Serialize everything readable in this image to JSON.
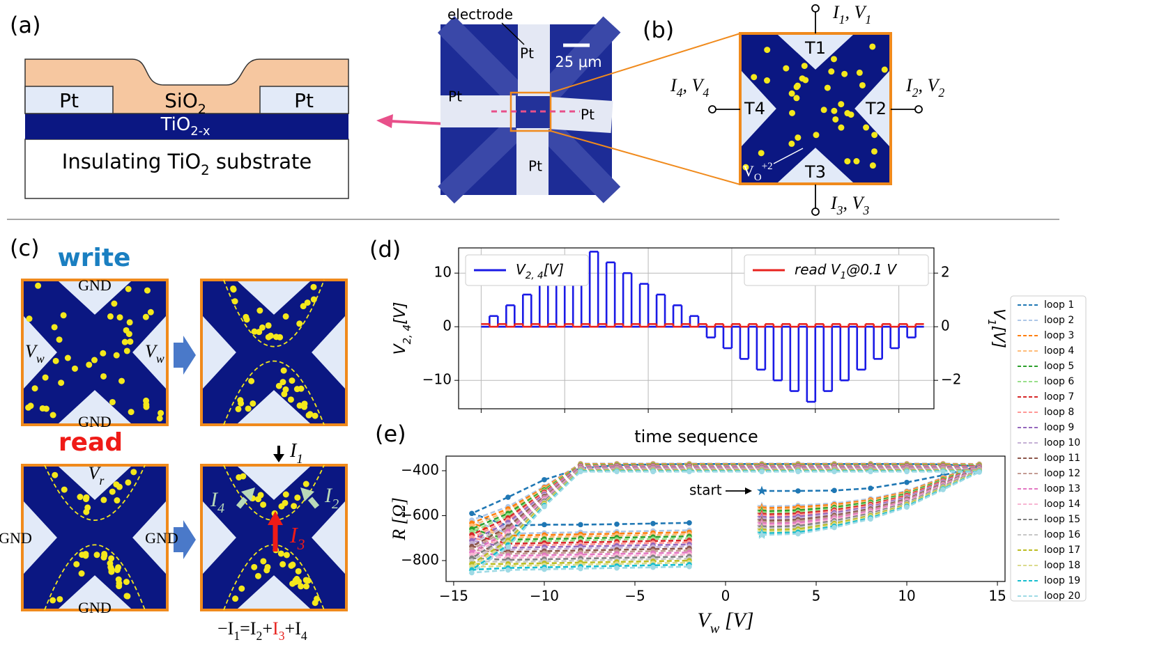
{
  "panel_a": {
    "label": "(a)",
    "pt_left": "Pt",
    "pt_right": "Pt",
    "sio2": [
      {
        "text": "SiO",
        "sub": "2"
      }
    ],
    "tio2x": [
      {
        "text": "TiO",
        "sub": "2-x"
      }
    ],
    "substrate": [
      {
        "text": "Insulating TiO",
        "sub": "2"
      },
      {
        "text": " substrate"
      }
    ]
  },
  "micrograph": {
    "electrode": "electrode",
    "pt_top": "Pt",
    "pt_left": "Pt",
    "pt_right": "Pt",
    "pt_bottom": "Pt",
    "scale": "25 μm"
  },
  "panel_b": {
    "label": "(b)",
    "terminals": [
      "T1",
      "T2",
      "T3",
      "T4"
    ],
    "t1": [
      {
        "text": "I",
        "sub": "1"
      },
      {
        "text": ", V",
        "sub": "1"
      }
    ],
    "t2": [
      {
        "text": "I",
        "sub": "2"
      },
      {
        "text": ", V",
        "sub": "2"
      }
    ],
    "t3": [
      {
        "text": "I",
        "sub": "3"
      },
      {
        "text": ", V",
        "sub": "3"
      }
    ],
    "t4": [
      {
        "text": "I",
        "sub": "4"
      },
      {
        "text": ", V",
        "sub": "4"
      }
    ],
    "vo": [
      {
        "text": "V",
        "sub": "O",
        "sup": "+2"
      }
    ]
  },
  "panel_c": {
    "label": "(c)",
    "write": "write",
    "read": "read",
    "gnd": [
      "GND",
      "GND",
      "GND",
      "GND",
      "GND"
    ],
    "vw_left": [
      {
        "text": "V",
        "sub": "w"
      }
    ],
    "vw_right": [
      {
        "text": "V",
        "sub": "w"
      }
    ],
    "vr": [
      {
        "text": "V",
        "sub": "r"
      }
    ],
    "i1": [
      {
        "text": "I",
        "sub": "1"
      }
    ],
    "i2": [
      {
        "text": "I",
        "sub": "2"
      }
    ],
    "i3": [
      {
        "text": "I",
        "sub": "3"
      }
    ],
    "i4": [
      {
        "text": "I",
        "sub": "4"
      }
    ],
    "equation": [
      {
        "text": "−I",
        "sub": "1"
      },
      {
        "text": "=I",
        "sub": "2"
      },
      {
        "text": "+"
      },
      {
        "text": "I",
        "sub": "3",
        "color": "#e8231f"
      },
      {
        "text": "+I",
        "sub": "4"
      }
    ]
  },
  "chart_data": [
    {
      "type": "step",
      "label": "(d)",
      "xlabel": "time sequence",
      "ylabel": [
        {
          "text": "V",
          "sub": "2, 4"
        },
        {
          "text": "[V]"
        }
      ],
      "y2label": [
        {
          "text": "V",
          "sub": "1"
        },
        {
          "text": "[V]"
        }
      ],
      "x": [
        0,
        1,
        2,
        3,
        4,
        5,
        6,
        7,
        8,
        9,
        10,
        11,
        12,
        13,
        14,
        15,
        16,
        17,
        18,
        19,
        20,
        21,
        22,
        23,
        24,
        25,
        26,
        27,
        28,
        29,
        30,
        31,
        32,
        33,
        34,
        35,
        36,
        37,
        38,
        39,
        40,
        41,
        42,
        43,
        44,
        45,
        46,
        47,
        48,
        49,
        50,
        51,
        52
      ],
      "xlim": [
        -2.7,
        54.2
      ],
      "xgrid": [
        0,
        10,
        20,
        30,
        40,
        50
      ],
      "ylim": [
        -15.3,
        14.7
      ],
      "yticks": [
        {
          "value": -10,
          "label": "−10"
        },
        0,
        10
      ],
      "y2lim": [
        -3.06,
        2.94
      ],
      "y2ticks": [
        {
          "value": -2,
          "label": "−2"
        },
        0,
        2
      ],
      "grid": true,
      "series": [
        {
          "name": [
            {
              "text": "V",
              "sub": "2, 4"
            },
            {
              "text": "[V]"
            }
          ],
          "color": "#1a1ae6",
          "legend": "upper left",
          "values": [
            0,
            2,
            0,
            4,
            0,
            6,
            0,
            8,
            0,
            10,
            0,
            12,
            0,
            14,
            0,
            12,
            0,
            10,
            0,
            8,
            0,
            6,
            0,
            4,
            0,
            2,
            0,
            -2,
            0,
            -4,
            0,
            -6,
            0,
            -8,
            0,
            -10,
            0,
            -12,
            0,
            -14,
            0,
            -12,
            0,
            -10,
            0,
            -8,
            0,
            -6,
            0,
            -4,
            0,
            -2,
            0
          ]
        },
        {
          "name": [
            {
              "text": "read "
            },
            {
              "text": "V",
              "sub": "1"
            },
            {
              "text": "@0.1 "
            },
            {
              "text": "V"
            }
          ],
          "color": "#e8231f",
          "axis": "y2",
          "legend": "upper right",
          "values": [
            0.1,
            0,
            0.1,
            0,
            0.1,
            0,
            0.1,
            0,
            0.1,
            0,
            0.1,
            0,
            0.1,
            0,
            0.1,
            0,
            0.1,
            0,
            0.1,
            0,
            0.1,
            0,
            0.1,
            0,
            0.1,
            0,
            0.1,
            0,
            0.1,
            0,
            0.1,
            0,
            0.1,
            0,
            0.1,
            0,
            0.1,
            0,
            0.1,
            0,
            0.1,
            0,
            0.1,
            0,
            0.1,
            0,
            0.1,
            0,
            0.1,
            0,
            0.1,
            0,
            0.1
          ]
        }
      ]
    },
    {
      "type": "line",
      "label": "(e)",
      "xlabel": [
        {
          "text": "V",
          "sub": "w"
        },
        {
          "text": " [V]"
        }
      ],
      "ylabel": [
        {
          "text": "R"
        },
        {
          "text": " [Ω]"
        }
      ],
      "annotation": "start",
      "x": [
        2,
        4,
        6,
        8,
        10,
        12,
        14,
        12,
        10,
        8,
        6,
        4,
        2,
        -2,
        -4,
        -6,
        -8,
        -10,
        -12,
        -14,
        -12,
        -10,
        -8,
        -6,
        -4,
        -2
      ],
      "xlim": [
        -15.42,
        15.42
      ],
      "xticks": [
        {
          "value": -15,
          "label": "−15"
        },
        {
          "value": -10,
          "label": "−10"
        },
        {
          "value": -5,
          "label": "−5"
        },
        0,
        5,
        10,
        15
      ],
      "ylim": [
        -893,
        -335
      ],
      "yticks": [
        {
          "value": -800,
          "label": "−800"
        },
        {
          "value": -600,
          "label": "−600"
        },
        {
          "value": -400,
          "label": "−400"
        }
      ],
      "legend": "right",
      "series": [
        {
          "name": "loop 1",
          "color": "#1f77b4",
          "values": [
            -490,
            -490,
            -488,
            -478,
            -452,
            -420,
            -380,
            -372,
            -370,
            -370,
            -370,
            -370,
            -370,
            -370,
            -372,
            -375,
            -390,
            -440,
            -518,
            -590,
            -645,
            -640,
            -640,
            -638,
            -635,
            -632
          ]
        },
        {
          "name": "loop 2",
          "color": "#aec7e8",
          "values": [
            -560,
            -555,
            -545,
            -525,
            -490,
            -430,
            -370,
            -368,
            -368,
            -368,
            -368,
            -368,
            -368,
            -368,
            -368,
            -368,
            -368,
            -470,
            -560,
            -620,
            -680,
            -677,
            -674,
            -671,
            -668,
            -665
          ]
        },
        {
          "name": "loop 3",
          "color": "#ff7f0e",
          "values": [
            -567,
            -562,
            -551,
            -530,
            -494,
            -433,
            -372,
            -370,
            -370,
            -370,
            -370,
            -370,
            -370,
            -370,
            -370,
            -370,
            -370,
            -475,
            -570,
            -633,
            -689,
            -686,
            -683,
            -680,
            -677,
            -674
          ]
        },
        {
          "name": "loop 4",
          "color": "#ffbb78",
          "values": [
            -574,
            -569,
            -557,
            -535,
            -498,
            -436,
            -374,
            -372,
            -372,
            -372,
            -372,
            -372,
            -372,
            -372,
            -372,
            -372,
            -372,
            -480,
            -580,
            -646,
            -698,
            -695,
            -692,
            -689,
            -686,
            -683
          ]
        },
        {
          "name": "loop 5",
          "color": "#2ca02c",
          "values": [
            -581,
            -576,
            -563,
            -540,
            -502,
            -439,
            -376,
            -374,
            -374,
            -374,
            -374,
            -374,
            -374,
            -374,
            -374,
            -374,
            -374,
            -485,
            -590,
            -659,
            -707,
            -704,
            -701,
            -698,
            -695,
            -692
          ]
        },
        {
          "name": "loop 6",
          "color": "#98df8a",
          "values": [
            -588,
            -583,
            -569,
            -545,
            -506,
            -442,
            -378,
            -376,
            -376,
            -376,
            -376,
            -376,
            -376,
            -376,
            -376,
            -376,
            -376,
            -490,
            -600,
            -672,
            -716,
            -713,
            -710,
            -707,
            -704,
            -701
          ]
        },
        {
          "name": "loop 7",
          "color": "#d62728",
          "values": [
            -595,
            -590,
            -575,
            -550,
            -510,
            -445,
            -380,
            -378,
            -378,
            -378,
            -378,
            -378,
            -378,
            -378,
            -378,
            -378,
            -378,
            -495,
            -610,
            -685,
            -725,
            -722,
            -719,
            -716,
            -713,
            -710
          ]
        },
        {
          "name": "loop 8",
          "color": "#ff9896",
          "values": [
            -602,
            -597,
            -581,
            -555,
            -514,
            -448,
            -382,
            -380,
            -380,
            -380,
            -380,
            -380,
            -380,
            -380,
            -380,
            -380,
            -380,
            -500,
            -620,
            -698,
            -734,
            -731,
            -728,
            -725,
            -722,
            -719
          ]
        },
        {
          "name": "loop 9",
          "color": "#9467bd",
          "values": [
            -609,
            -604,
            -587,
            -560,
            -518,
            -451,
            -384,
            -382,
            -382,
            -382,
            -382,
            -382,
            -382,
            -382,
            -382,
            -382,
            -382,
            -505,
            -630,
            -711,
            -743,
            -740,
            -737,
            -734,
            -731,
            -728
          ]
        },
        {
          "name": "loop 10",
          "color": "#c5b0d5",
          "values": [
            -616,
            -611,
            -593,
            -565,
            -522,
            -454,
            -386,
            -384,
            -384,
            -384,
            -384,
            -384,
            -384,
            -384,
            -384,
            -384,
            -384,
            -510,
            -640,
            -724,
            -752,
            -749,
            -746,
            -743,
            -740,
            -737
          ]
        },
        {
          "name": "loop 11",
          "color": "#8c564b",
          "values": [
            -623,
            -618,
            -599,
            -570,
            -526,
            -457,
            -388,
            -386,
            -386,
            -386,
            -386,
            -386,
            -386,
            -386,
            -386,
            -386,
            -386,
            -515,
            -650,
            -737,
            -761,
            -758,
            -755,
            -752,
            -749,
            -746
          ]
        },
        {
          "name": "loop 12",
          "color": "#c49c94",
          "values": [
            -630,
            -625,
            -605,
            -575,
            -530,
            -460,
            -390,
            -388,
            -388,
            -388,
            -388,
            -388,
            -388,
            -388,
            -388,
            -388,
            -388,
            -520,
            -660,
            -750,
            -770,
            -767,
            -764,
            -761,
            -758,
            -755
          ]
        },
        {
          "name": "loop 13",
          "color": "#e377c2",
          "values": [
            -637,
            -632,
            -611,
            -580,
            -534,
            -463,
            -392,
            -390,
            -390,
            -390,
            -390,
            -390,
            -390,
            -390,
            -390,
            -390,
            -390,
            -525,
            -670,
            -763,
            -779,
            -776,
            -773,
            -770,
            -767,
            -764
          ]
        },
        {
          "name": "loop 14",
          "color": "#f7b6d2",
          "values": [
            -644,
            -639,
            -617,
            -585,
            -538,
            -466,
            -394,
            -392,
            -392,
            -392,
            -392,
            -392,
            -392,
            -392,
            -392,
            -392,
            -392,
            -530,
            -680,
            -776,
            -788,
            -785,
            -782,
            -779,
            -776,
            -773
          ]
        },
        {
          "name": "loop 15",
          "color": "#7f7f7f",
          "values": [
            -651,
            -646,
            -623,
            -590,
            -542,
            -469,
            -396,
            -394,
            -394,
            -394,
            -394,
            -394,
            -394,
            -394,
            -394,
            -394,
            -394,
            -535,
            -690,
            -789,
            -797,
            -794,
            -791,
            -788,
            -785,
            -782
          ]
        },
        {
          "name": "loop 16",
          "color": "#c7c7c7",
          "values": [
            -658,
            -653,
            -629,
            -595,
            -546,
            -472,
            -398,
            -396,
            -396,
            -396,
            -396,
            -396,
            -396,
            -396,
            -396,
            -396,
            -396,
            -540,
            -700,
            -802,
            -806,
            -803,
            -800,
            -797,
            -794,
            -791
          ]
        },
        {
          "name": "loop 17",
          "color": "#bcbd22",
          "values": [
            -665,
            -660,
            -635,
            -600,
            -550,
            -475,
            -400,
            -398,
            -398,
            -398,
            -398,
            -398,
            -398,
            -398,
            -398,
            -398,
            -398,
            -545,
            -710,
            -815,
            -815,
            -812,
            -809,
            -806,
            -803,
            -800
          ]
        },
        {
          "name": "loop 18",
          "color": "#dbdb8d",
          "values": [
            -672,
            -667,
            -641,
            -605,
            -554,
            -478,
            -402,
            -400,
            -400,
            -400,
            -400,
            -400,
            -400,
            -400,
            -400,
            -400,
            -400,
            -550,
            -720,
            -828,
            -824,
            -821,
            -818,
            -815,
            -812,
            -809
          ]
        },
        {
          "name": "loop 19",
          "color": "#17becf",
          "values": [
            -679,
            -674,
            -647,
            -610,
            -558,
            -481,
            -404,
            -402,
            -402,
            -402,
            -402,
            -402,
            -402,
            -402,
            -402,
            -402,
            -402,
            -555,
            -730,
            -841,
            -833,
            -830,
            -827,
            -824,
            -821,
            -818
          ]
        },
        {
          "name": "loop 20",
          "color": "#9edae5",
          "values": [
            -686,
            -681,
            -653,
            -615,
            -562,
            -484,
            -406,
            -404,
            -404,
            -404,
            -404,
            -404,
            -404,
            -404,
            -404,
            -404,
            -404,
            -560,
            -740,
            -854,
            -842,
            -839,
            -836,
            -833,
            -830,
            -827
          ]
        }
      ]
    }
  ]
}
